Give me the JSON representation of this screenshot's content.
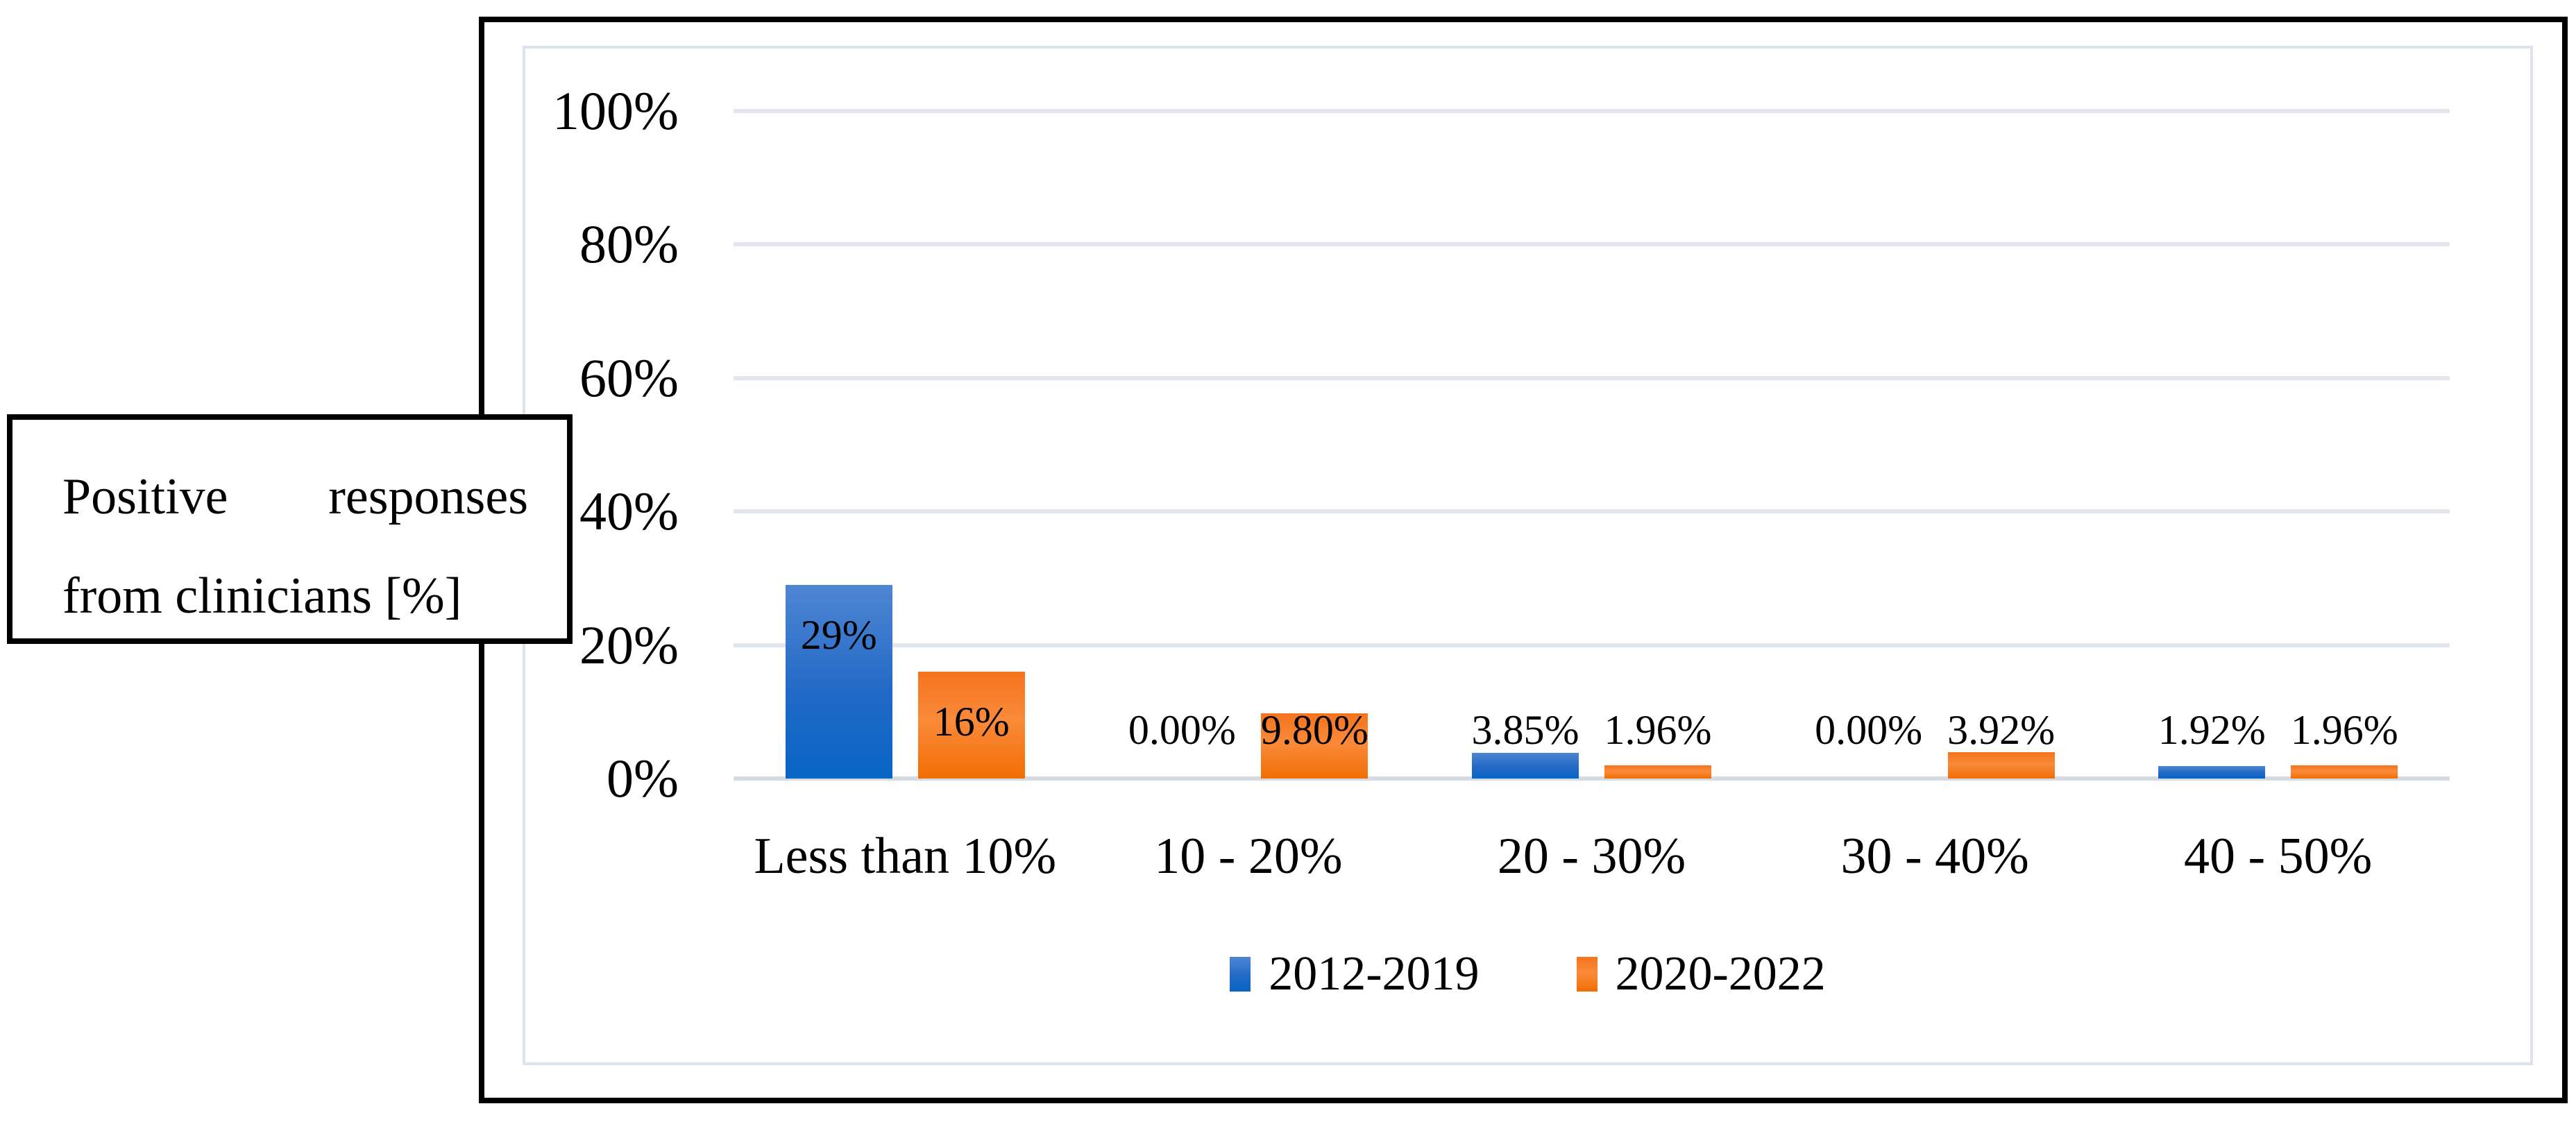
{
  "figure": {
    "side_label": "Positive responses from clinicians [%]"
  },
  "chart_data": {
    "type": "bar",
    "title": "",
    "xlabel": "",
    "ylabel": "Positive responses from clinicians [%]",
    "categories": [
      "Less than 10%",
      "10 - 20%",
      "20 - 30%",
      "30 - 40%",
      "40 - 50%"
    ],
    "series": [
      {
        "name": "2012-2019",
        "color": "#1b69c5",
        "values": [
          29,
          0,
          3.85,
          0,
          1.92
        ],
        "data_labels": [
          "29%",
          "0.00%",
          "3.85%",
          "0.00%",
          "1.92%"
        ]
      },
      {
        "name": "2020-2022",
        "color": "#f5731d",
        "values": [
          16,
          9.8,
          1.96,
          3.92,
          1.96
        ],
        "data_labels": [
          "16%",
          "9.80%",
          "1.96%",
          "3.92%",
          "1.96%"
        ]
      }
    ],
    "yticks": [
      "100%",
      "80%",
      "60%",
      "40%",
      "20%",
      "0%"
    ],
    "ylim": [
      0,
      100
    ],
    "grid": true,
    "legend_position": "bottom"
  }
}
